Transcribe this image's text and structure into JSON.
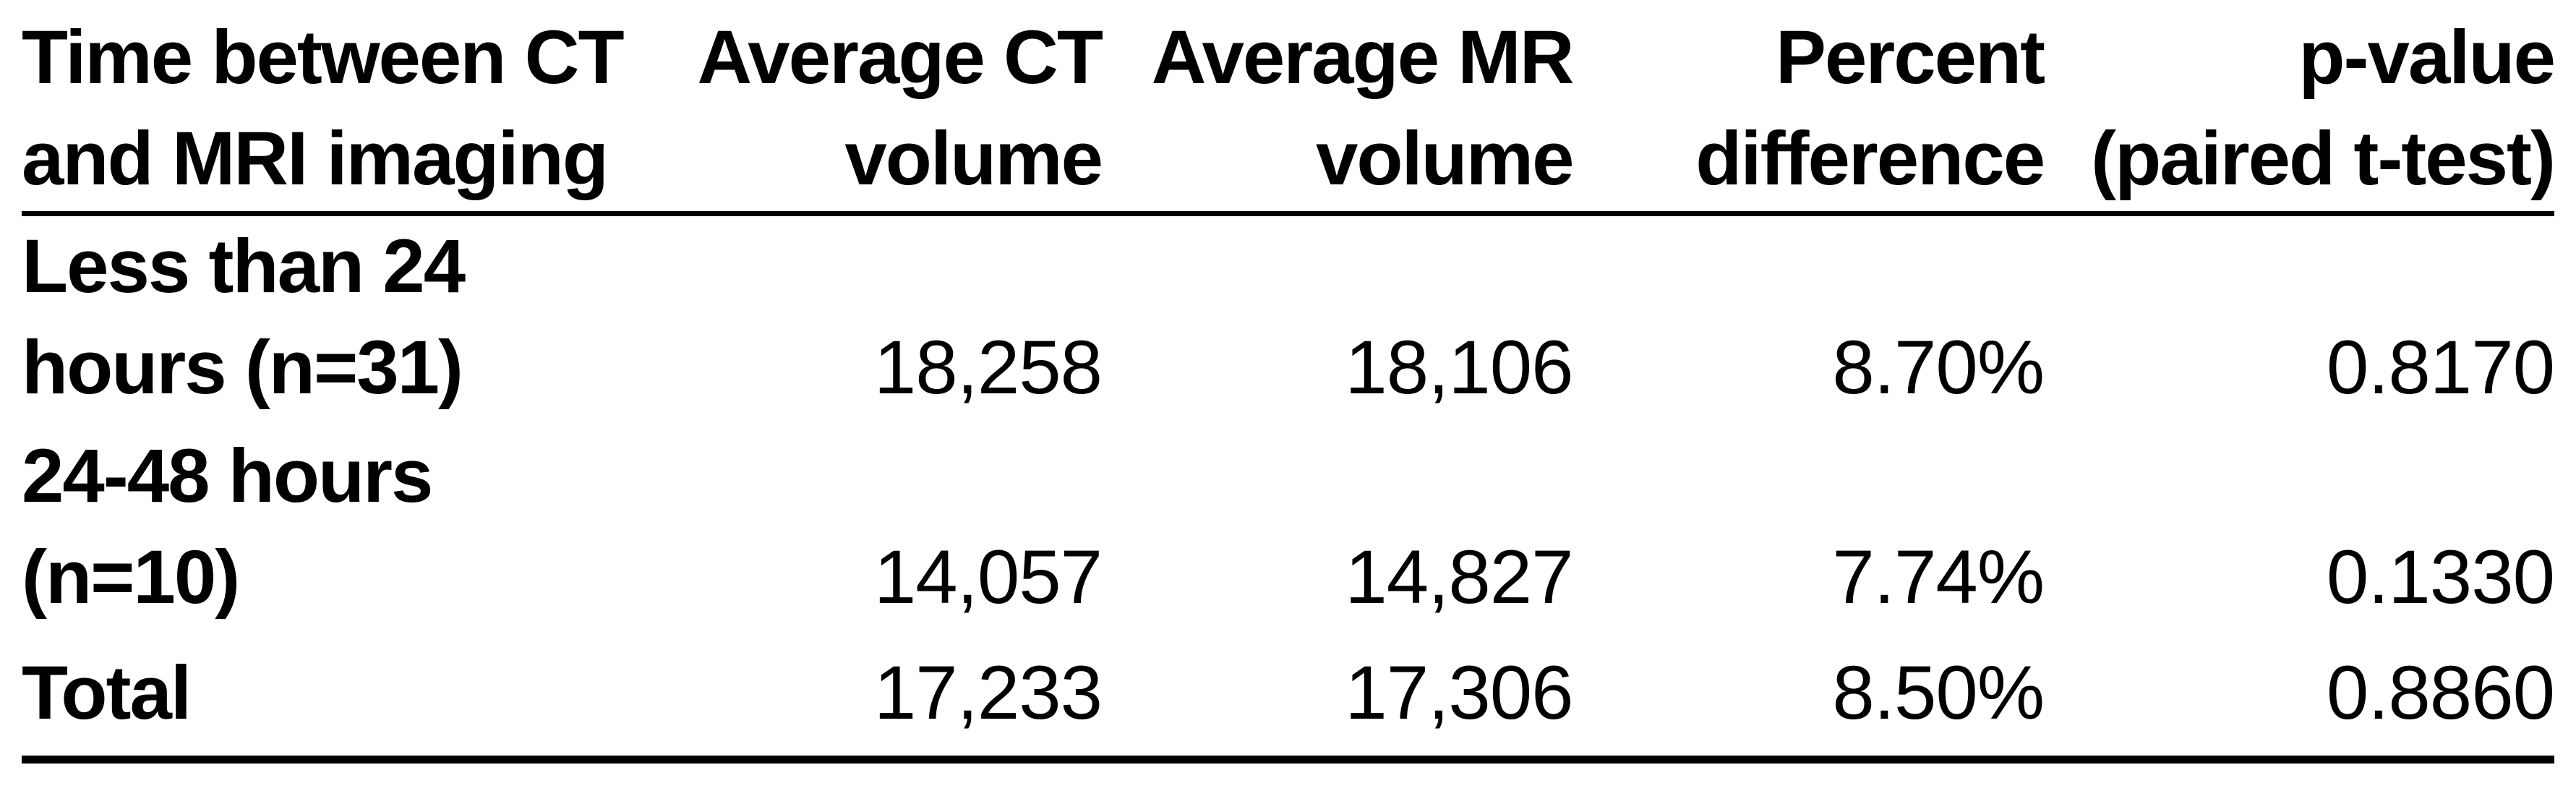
{
  "table": {
    "columns": [
      {
        "id": "time_between",
        "line1": "Time between CT",
        "line2": "and MRI imaging"
      },
      {
        "id": "avg_ct_volume",
        "line1": "Average CT",
        "line2": "volume"
      },
      {
        "id": "avg_mr_volume",
        "line1": "Average MR",
        "line2": "volume"
      },
      {
        "id": "percent_difference",
        "line1": "Percent",
        "line2": "difference"
      },
      {
        "id": "p_value",
        "line1": "p-value",
        "line2": "(paired t-test)"
      }
    ],
    "rows": [
      {
        "label_line1": "Less than 24",
        "label_line2": "hours (n=31)",
        "avg_ct_volume": "18,258",
        "avg_mr_volume": "18,106",
        "percent_difference": "8.70%",
        "p_value": "0.8170"
      },
      {
        "label_line1": "24-48 hours",
        "label_line2": "(n=10)",
        "avg_ct_volume": "14,057",
        "avg_mr_volume": "14,827",
        "percent_difference": "7.74%",
        "p_value": "0.1330"
      },
      {
        "label": "Total",
        "avg_ct_volume": "17,233",
        "avg_mr_volume": "17,306",
        "percent_difference": "8.50%",
        "p_value": "0.8860"
      }
    ]
  },
  "colors": {
    "text": "#000000",
    "background": "#ffffff",
    "rule": "#000000"
  }
}
